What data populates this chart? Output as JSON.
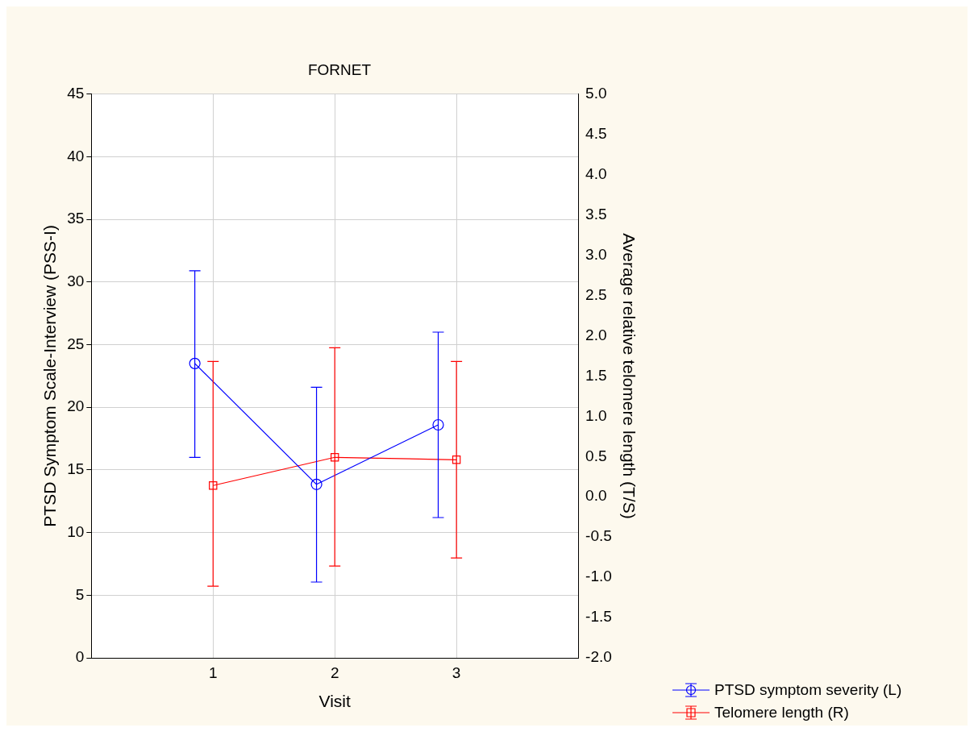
{
  "chart_data": {
    "type": "line",
    "title": "FORNET",
    "xlabel": "Visit",
    "ylabel": "PTSD Symptom Scale-Interview (PSS-I)",
    "y2label": "Average relative telomere length (T/S)",
    "xlim": [
      0,
      4
    ],
    "xticks": [
      1,
      2,
      3
    ],
    "ylim": [
      0,
      45
    ],
    "yticks": [
      0,
      5,
      10,
      15,
      20,
      25,
      30,
      35,
      40,
      45
    ],
    "y2lim": [
      -2,
      5
    ],
    "y2ticks": [
      {
        "value": -2,
        "label": "-2.0"
      },
      {
        "value": -1.5,
        "label": "-1.5"
      },
      {
        "value": -1,
        "label": "-1.0"
      },
      {
        "value": -0.5,
        "label": "-0.5"
      },
      {
        "value": 0,
        "label": "0.0"
      },
      {
        "value": 0.5,
        "label": "0.5"
      },
      {
        "value": 1,
        "label": "1.0"
      },
      {
        "value": 1.5,
        "label": "1.5"
      },
      {
        "value": 2,
        "label": "2.0"
      },
      {
        "value": 2.5,
        "label": "2.5"
      },
      {
        "value": 3,
        "label": "3.0"
      },
      {
        "value": 3.5,
        "label": "3.5"
      },
      {
        "value": 4,
        "label": "4.0"
      },
      {
        "value": 4.5,
        "label": "4.5"
      },
      {
        "value": 5,
        "label": "5.0"
      }
    ],
    "grid": true,
    "legend": "bottom right",
    "line_style": "solid",
    "series": [
      {
        "name": "PTSD symptom severity (L)",
        "color": "#0000ff",
        "marker": "circle",
        "x": [
          0.85,
          1.85,
          2.85
        ],
        "values": [
          23.5,
          13.85,
          18.6
        ],
        "errors": [
          [
            16.0,
            30.9
          ],
          [
            6.05,
            21.6
          ],
          [
            11.2,
            26.0
          ]
        ]
      },
      {
        "name": "Telomere length (R)",
        "color": "#ff0000",
        "marker": "square",
        "axis": "y2",
        "x": [
          1,
          2,
          3
        ],
        "values": [
          0.14,
          0.49,
          0.46
        ],
        "errors": [
          [
            -1.11,
            1.68
          ],
          [
            -0.86,
            1.85
          ],
          [
            -0.76,
            1.68
          ]
        ]
      }
    ]
  }
}
